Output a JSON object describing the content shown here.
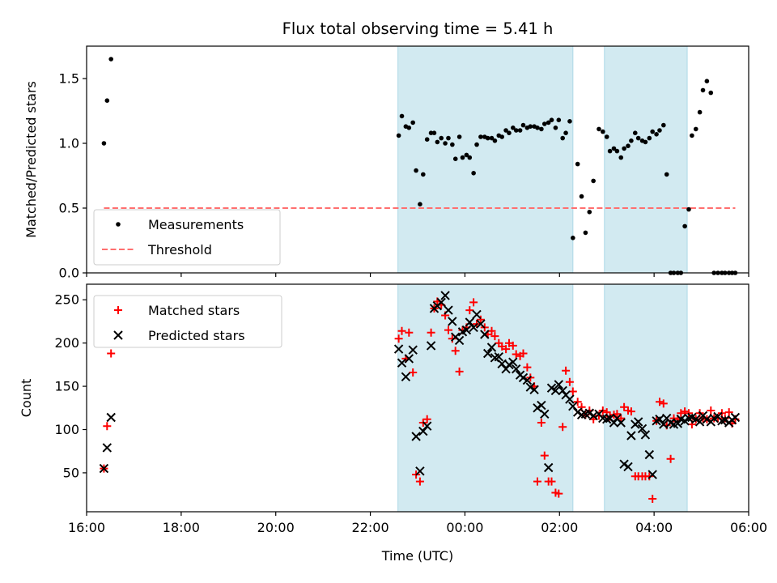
{
  "figure": {
    "title": "Flux total observing time = 5.41 h",
    "xlabel": "Time (UTC)"
  },
  "colors": {
    "shade": "#add8e6",
    "threshold": "#ff6f6f",
    "measurements": "#000000",
    "matched": "#ff0000",
    "predicted": "#000000"
  },
  "chart_data": [
    {
      "type": "scatter",
      "ylabel": "Matched/Predicted stars",
      "xlim": [
        "16:00",
        "06:00"
      ],
      "ylim": [
        0,
        1.75
      ],
      "yticks": [
        0.0,
        0.5,
        1.0,
        1.5
      ],
      "ytick_labels": [
        "0.0",
        "0.5",
        "1.0",
        "1.5"
      ],
      "xtick_labels": [
        "16:00",
        "18:00",
        "20:00",
        "22:00",
        "00:00",
        "02:00",
        "04:00",
        "06:00"
      ],
      "legend": {
        "position": "lower-left",
        "entries": [
          "Measurements",
          "Threshold"
        ]
      },
      "shaded_spans": [
        [
          "22:35",
          "02:17"
        ],
        [
          "02:57",
          "04:42"
        ]
      ],
      "threshold": {
        "name": "Threshold",
        "value": 0.5,
        "x": [
          "16:22",
          "05:43"
        ]
      },
      "series": [
        {
          "name": "Measurements",
          "marker": "dot",
          "x": [
            "16:22",
            "16:26",
            "16:31",
            "22:36",
            "22:40",
            "22:45",
            "22:49",
            "22:54",
            "22:58",
            "23:03",
            "23:07",
            "23:12",
            "23:17",
            "23:21",
            "23:25",
            "23:30",
            "23:35",
            "23:39",
            "23:44",
            "23:48",
            "23:53",
            "23:57",
            "00:02",
            "00:06",
            "00:11",
            "00:15",
            "00:20",
            "00:25",
            "00:29",
            "00:34",
            "00:38",
            "00:43",
            "00:47",
            "00:52",
            "00:56",
            "01:01",
            "01:05",
            "01:10",
            "01:14",
            "01:19",
            "01:23",
            "01:28",
            "01:32",
            "01:37",
            "01:41",
            "01:46",
            "01:50",
            "01:55",
            "01:59",
            "02:04",
            "02:08",
            "02:13",
            "02:17",
            "02:23",
            "02:28",
            "02:33",
            "02:38",
            "02:43",
            "02:50",
            "02:55",
            "03:00",
            "03:04",
            "03:09",
            "03:13",
            "03:18",
            "03:22",
            "03:27",
            "03:31",
            "03:36",
            "03:40",
            "03:45",
            "03:49",
            "03:54",
            "03:58",
            "04:03",
            "04:07",
            "04:12",
            "04:16",
            "04:21",
            "04:25",
            "04:30",
            "04:34",
            "04:39",
            "04:44",
            "04:48",
            "04:53",
            "04:58",
            "05:02",
            "05:07",
            "05:12",
            "05:16",
            "05:21",
            "05:26",
            "05:30",
            "05:35",
            "05:39",
            "05:43"
          ],
          "y": [
            1.0,
            1.33,
            1.65,
            1.06,
            1.21,
            1.13,
            1.12,
            1.16,
            0.79,
            0.53,
            0.76,
            1.03,
            1.08,
            1.08,
            1.01,
            1.04,
            1.0,
            1.04,
            0.99,
            0.88,
            1.05,
            0.89,
            0.91,
            0.89,
            0.77,
            0.99,
            1.05,
            1.05,
            1.04,
            1.04,
            1.02,
            1.06,
            1.05,
            1.1,
            1.08,
            1.12,
            1.1,
            1.1,
            1.14,
            1.12,
            1.13,
            1.13,
            1.12,
            1.11,
            1.15,
            1.16,
            1.18,
            1.12,
            1.18,
            1.04,
            1.08,
            1.17,
            0.27,
            0.84,
            0.59,
            0.31,
            0.47,
            0.71,
            1.11,
            1.09,
            1.05,
            0.94,
            0.96,
            0.94,
            0.89,
            0.96,
            0.98,
            1.02,
            1.08,
            1.04,
            1.02,
            1.01,
            1.04,
            1.09,
            1.07,
            1.1,
            1.14,
            0.76,
            0.0,
            0.0,
            0.0,
            0.0,
            0.36,
            0.49,
            1.06,
            1.11,
            1.24,
            1.41,
            1.48,
            1.39,
            0.0,
            0.0,
            0.0,
            0.0,
            0.0,
            0.0,
            0.0
          ]
        }
      ]
    },
    {
      "type": "scatter",
      "ylabel": "Count",
      "xlim": [
        "16:00",
        "06:00"
      ],
      "ylim": [
        5,
        268
      ],
      "yticks": [
        50,
        100,
        150,
        200,
        250
      ],
      "ytick_labels": [
        "50",
        "100",
        "150",
        "200",
        "250"
      ],
      "xtick_labels": [
        "16:00",
        "18:00",
        "20:00",
        "22:00",
        "00:00",
        "02:00",
        "04:00",
        "06:00"
      ],
      "legend": {
        "position": "upper-left",
        "entries": [
          "Matched stars",
          "Predicted stars"
        ]
      },
      "shaded_spans": [
        [
          "22:35",
          "02:17"
        ],
        [
          "02:57",
          "04:42"
        ]
      ],
      "series": [
        {
          "name": "Matched stars",
          "marker": "plus",
          "x": [
            "16:22",
            "16:26",
            "16:31",
            "22:36",
            "22:40",
            "22:45",
            "22:49",
            "22:54",
            "22:58",
            "23:03",
            "23:07",
            "23:12",
            "23:17",
            "23:21",
            "23:25",
            "23:30",
            "23:35",
            "23:39",
            "23:44",
            "23:48",
            "23:53",
            "23:57",
            "00:02",
            "00:06",
            "00:11",
            "00:15",
            "00:20",
            "00:25",
            "00:29",
            "00:34",
            "00:38",
            "00:43",
            "00:47",
            "00:52",
            "00:56",
            "01:01",
            "01:05",
            "01:10",
            "01:14",
            "01:19",
            "01:23",
            "01:28",
            "01:32",
            "01:37",
            "01:41",
            "01:46",
            "01:50",
            "01:55",
            "01:59",
            "02:04",
            "02:08",
            "02:13",
            "02:17",
            "02:23",
            "02:28",
            "02:33",
            "02:38",
            "02:43",
            "02:50",
            "02:55",
            "03:00",
            "03:04",
            "03:09",
            "03:13",
            "03:18",
            "03:22",
            "03:27",
            "03:31",
            "03:36",
            "03:40",
            "03:45",
            "03:49",
            "03:54",
            "03:58",
            "04:03",
            "04:07",
            "04:12",
            "04:16",
            "04:21",
            "04:25",
            "04:30",
            "04:34",
            "04:39",
            "04:44",
            "04:48",
            "04:53",
            "04:58",
            "05:02",
            "05:07",
            "05:12",
            "05:16",
            "05:21",
            "05:26",
            "05:30",
            "05:35",
            "05:39",
            "05:43"
          ],
          "y": [
            55,
            104,
            188,
            205,
            214,
            182,
            212,
            166,
            48,
            40,
            108,
            112,
            212,
            240,
            248,
            244,
            232,
            215,
            205,
            191,
            167,
            215,
            218,
            238,
            247,
            222,
            227,
            218,
            210,
            214,
            208,
            200,
            196,
            193,
            200,
            197,
            187,
            185,
            188,
            172,
            160,
            150,
            40,
            108,
            70,
            40,
            40,
            27,
            26,
            103,
            168,
            155,
            144,
            132,
            126,
            117,
            122,
            112,
            116,
            122,
            120,
            115,
            117,
            118,
            113,
            126,
            122,
            121,
            46,
            46,
            46,
            46,
            46,
            20,
            110,
            132,
            130,
            105,
            66,
            113,
            112,
            119,
            121,
            119,
            106,
            112,
            119,
            113,
            112,
            122,
            113,
            113,
            119,
            113,
            120,
            107,
            112
          ]
        },
        {
          "name": "Predicted stars",
          "marker": "x",
          "x": [
            "16:22",
            "16:26",
            "16:31",
            "22:36",
            "22:40",
            "22:45",
            "22:49",
            "22:54",
            "22:58",
            "23:03",
            "23:07",
            "23:12",
            "23:17",
            "23:21",
            "23:25",
            "23:30",
            "23:35",
            "23:39",
            "23:44",
            "23:48",
            "23:53",
            "23:57",
            "00:02",
            "00:06",
            "00:11",
            "00:15",
            "00:20",
            "00:25",
            "00:29",
            "00:34",
            "00:38",
            "00:43",
            "00:47",
            "00:52",
            "00:56",
            "01:01",
            "01:05",
            "01:10",
            "01:14",
            "01:19",
            "01:23",
            "01:28",
            "01:32",
            "01:37",
            "01:41",
            "01:46",
            "01:50",
            "01:55",
            "01:59",
            "02:04",
            "02:08",
            "02:13",
            "02:17",
            "02:23",
            "02:28",
            "02:33",
            "02:38",
            "02:43",
            "02:50",
            "02:55",
            "03:00",
            "03:04",
            "03:09",
            "03:13",
            "03:18",
            "03:22",
            "03:27",
            "03:31",
            "03:36",
            "03:40",
            "03:45",
            "03:49",
            "03:54",
            "03:58",
            "04:03",
            "04:07",
            "04:12",
            "04:16",
            "04:21",
            "04:25",
            "04:30",
            "04:34",
            "04:39",
            "04:44",
            "04:48",
            "04:53",
            "04:58",
            "05:02",
            "05:07",
            "05:12",
            "05:16",
            "05:21",
            "05:26",
            "05:30",
            "05:35",
            "05:39",
            "05:43"
          ],
          "y": [
            55,
            79,
            114,
            193,
            177,
            161,
            182,
            192,
            92,
            52,
            98,
            104,
            197,
            240,
            243,
            247,
            255,
            238,
            225,
            207,
            203,
            213,
            215,
            224,
            218,
            233,
            222,
            210,
            188,
            195,
            183,
            184,
            176,
            170,
            175,
            178,
            170,
            163,
            160,
            157,
            149,
            146,
            125,
            128,
            118,
            56,
            148,
            145,
            152,
            145,
            140,
            135,
            127,
            120,
            117,
            118,
            119,
            116,
            118,
            113,
            112,
            113,
            108,
            113,
            108,
            60,
            57,
            93,
            106,
            109,
            101,
            94,
            71,
            48,
            110,
            112,
            106,
            113,
            108,
            106,
            107,
            112,
            110,
            113,
            114,
            112,
            109,
            116,
            112,
            109,
            113,
            115,
            110,
            111,
            108,
            111,
            114
          ]
        }
      ]
    }
  ]
}
